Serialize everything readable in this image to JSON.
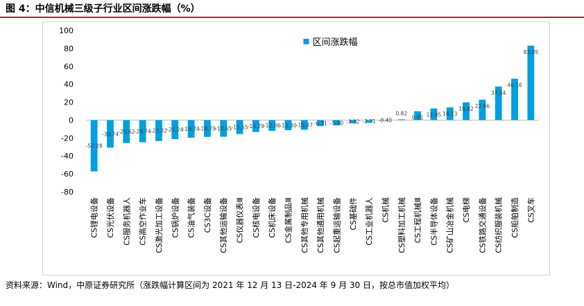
{
  "figure_title": "图 4：中信机械三级子行业区间涨跌幅（%）",
  "source_note": "资料来源：Wind，中原证券研究所（涨跌幅计算区间为 2021 年 12 月 13 日-2024 年 9 月 30 日，按总市值加权平均）",
  "colors": {
    "bar": "#00a0e0",
    "title_rule": "#b7202f",
    "zero_line": "#bfbfbf",
    "data_label": "#404040"
  },
  "chart_data": {
    "type": "bar",
    "title": "",
    "xlabel": "",
    "ylabel": "",
    "ylim": [
      -80,
      100
    ],
    "yticks": [
      -80,
      -60,
      -40,
      -20,
      0,
      20,
      40,
      60,
      80,
      100
    ],
    "grid": false,
    "legend_position": "top-center",
    "categories": [
      "CS锂电设备",
      "CS光伏设备",
      "CS服务机器人",
      "CS高空作业车",
      "CS激光加工设备",
      "CS锅炉设备",
      "CS油气装备",
      "CS3C设备",
      "CS其他运输设备",
      "CS仪器仪表Ⅲ",
      "CS核电设备",
      "CS机床设备",
      "CS金属制品Ⅲ",
      "CS其他专用机械",
      "CS其他通用机械",
      "CS起重运输设备",
      "CS基础件",
      "CS工业机器人",
      "CS机械",
      "CS塑料加工机械",
      "CS工程机械Ⅲ",
      "CS半导体设备",
      "CS矿山冶金机械",
      "CS电梯",
      "CS铁路交通设备",
      "CS纺织服装机械",
      "CS船舶制造",
      "CS叉车"
    ],
    "series": [
      {
        "name": "区间涨跌幅",
        "values": [
          -57.28,
          -30.74,
          -25.62,
          -24.74,
          -23.32,
          -21.24,
          -19.74,
          -18.79,
          -18.65,
          -15.55,
          -13.29,
          -12.06,
          -11.3,
          -10.87,
          -6.71,
          -5.9,
          -3.32,
          -2.71,
          -0.4,
          0.82,
          9.81,
          12.95,
          14.13,
          19.82,
          22.86,
          37.44,
          46.16,
          83.05
        ],
        "labels": [
          "-57.28",
          "-30.74",
          "-25.62",
          "-24.74",
          "-23.32",
          "-21.24",
          "-19.74",
          "-18.79",
          "-18.65",
          "-15.55",
          "-13.29",
          "-12.06",
          "-11.30",
          "-10.87",
          "-6.71",
          "-5.90",
          "-3.32",
          "-2.71",
          "-0.40",
          "0.82",
          "9.81",
          "12.95",
          "14.13",
          "19.82",
          "22.86",
          "37.44",
          "46.16",
          "83.05"
        ]
      }
    ]
  }
}
